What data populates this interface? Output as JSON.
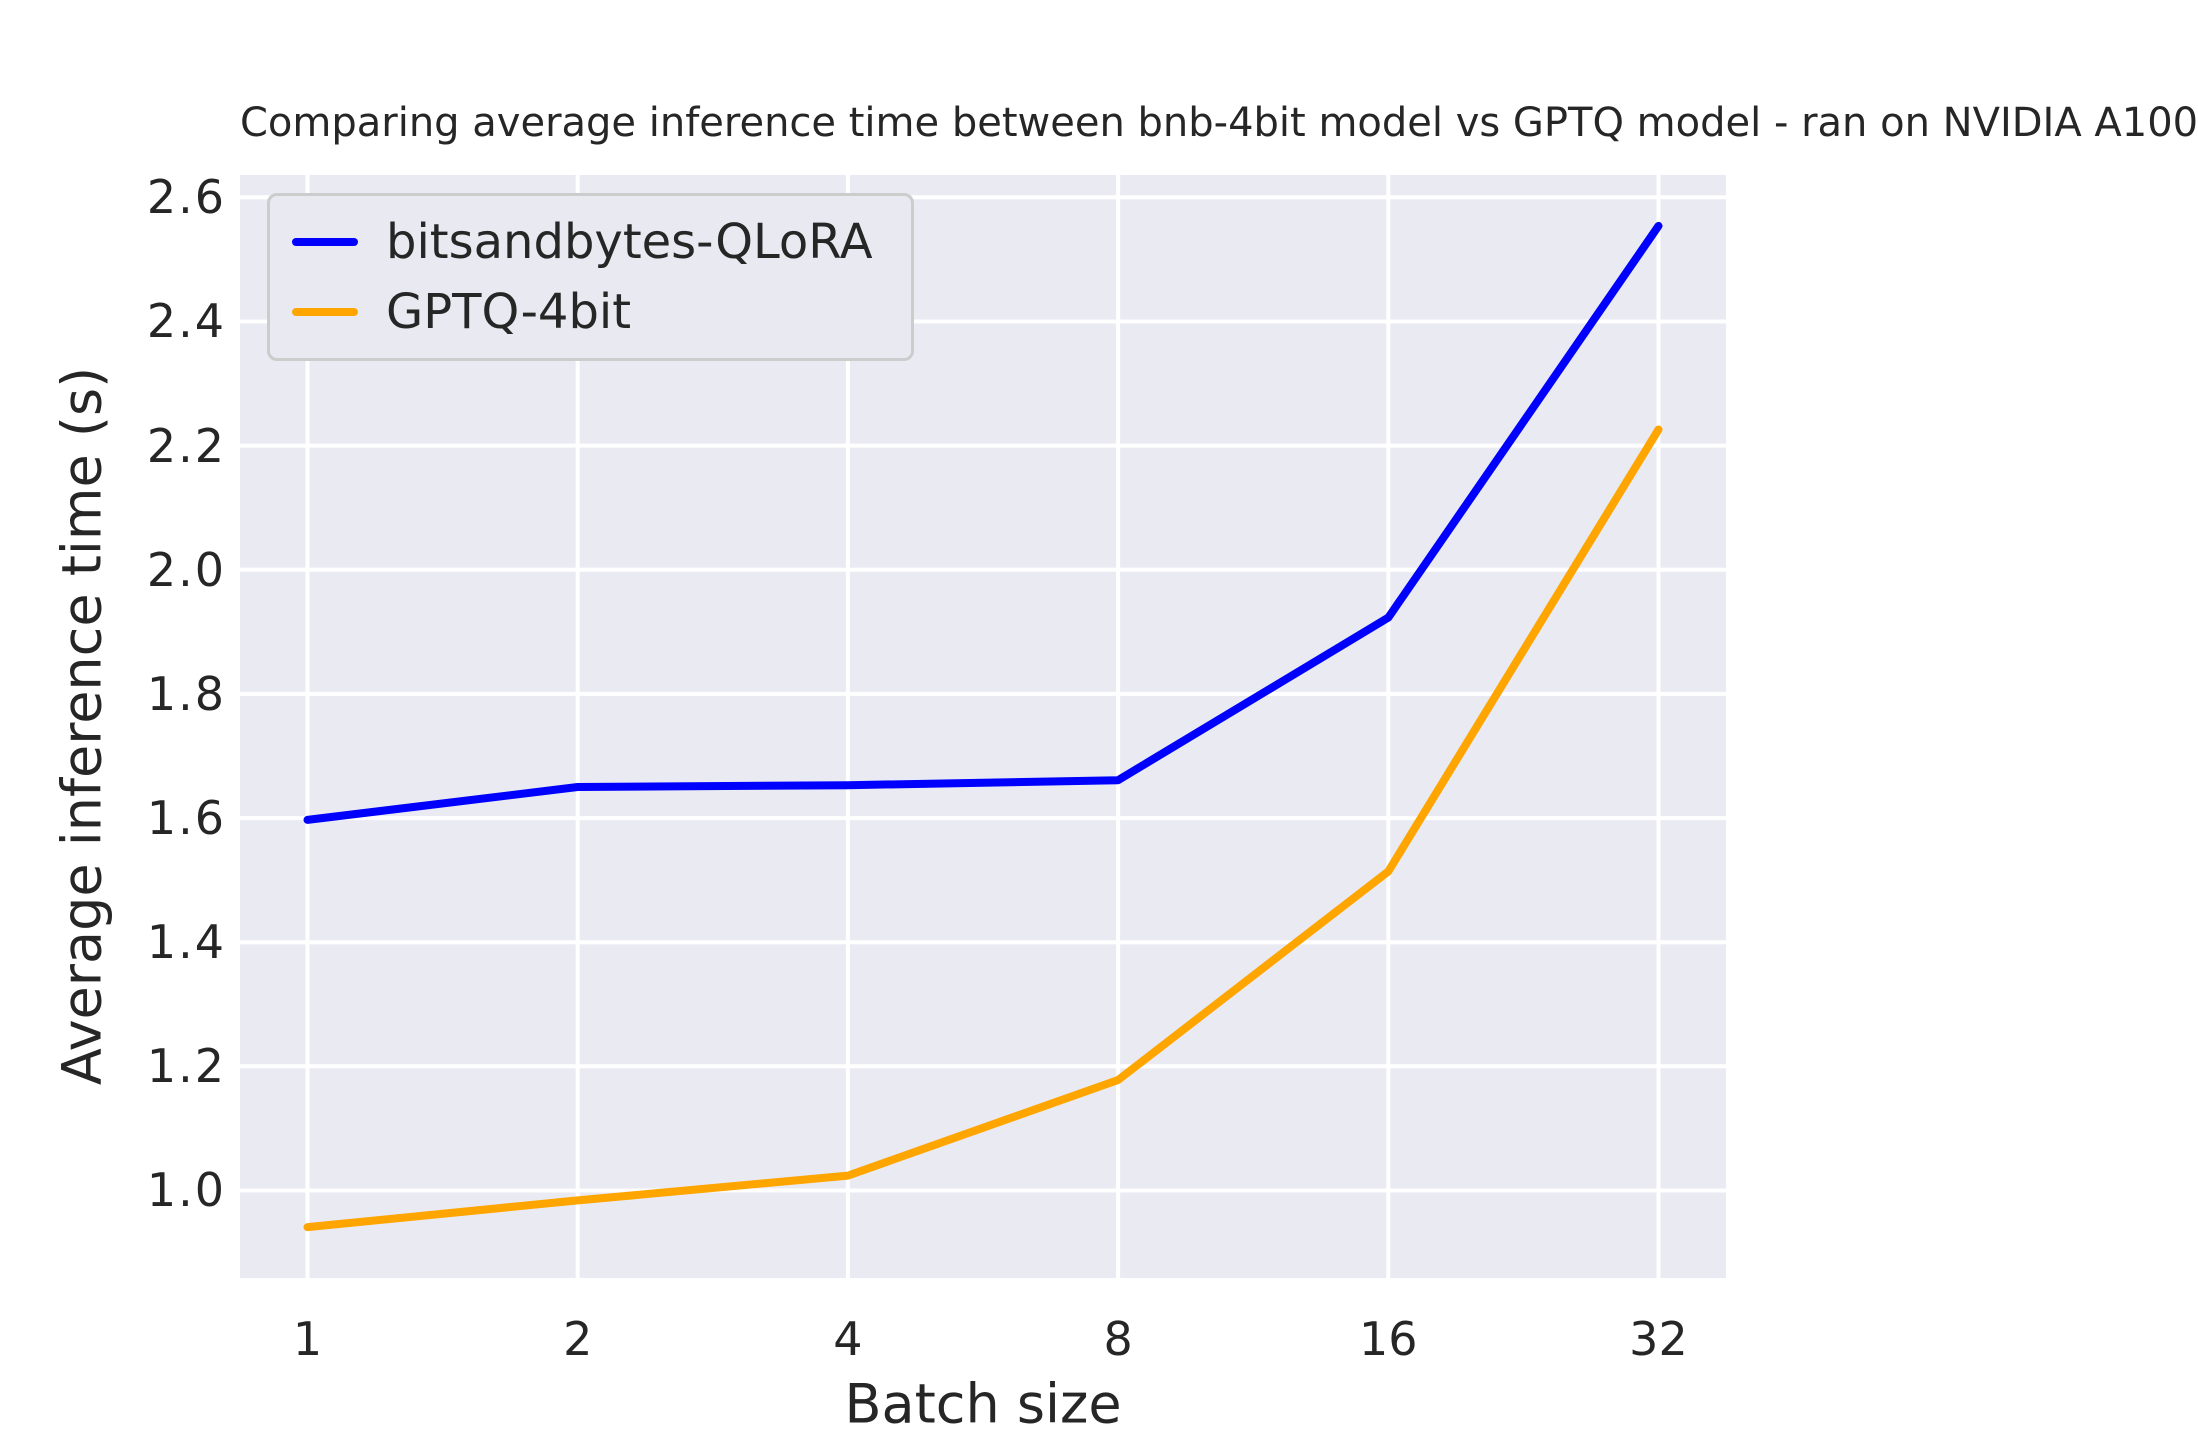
{
  "chart_data": {
    "type": "line",
    "title": "Comparing average inference time between bnb-4bit model vs GPTQ model - ran on NVIDIA A100",
    "xlabel": "Batch size",
    "ylabel": "Average inference time (s)",
    "categories": [
      "1",
      "2",
      "4",
      "8",
      "16",
      "32"
    ],
    "series": [
      {
        "name": "bitsandbytes-QLoRA",
        "color": "#0000ff",
        "values": [
          1.597,
          1.65,
          1.653,
          1.661,
          1.923,
          2.554
        ]
      },
      {
        "name": "GPTQ-4bit",
        "color": "#ffa500",
        "values": [
          0.941,
          0.984,
          1.024,
          1.178,
          1.514,
          2.226
        ]
      }
    ],
    "y_ticks": [
      1.0,
      1.2,
      1.4,
      1.6,
      1.8,
      2.0,
      2.2,
      2.4,
      2.6
    ],
    "ylim": [
      0.859,
      2.636
    ],
    "xlim_units": [
      -0.25,
      5.25
    ],
    "x_scale": "log2-categorical",
    "grid": true,
    "grid_color": "#ffffff",
    "plot_bg": "#eaeaf2",
    "legend_position": "upper left"
  }
}
